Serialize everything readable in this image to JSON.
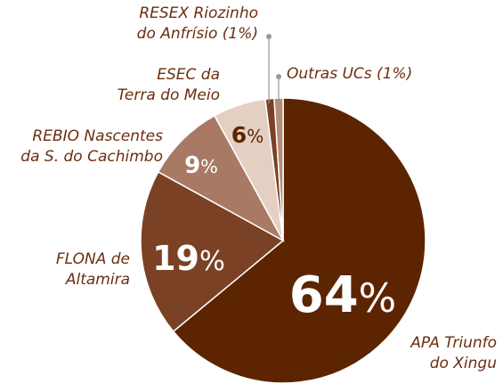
{
  "chart_data": {
    "type": "pie",
    "categories": [
      "APA Triunfo\ndo Xingu",
      "FLONA de\nAltamira",
      "REBIO Nascentes\nda S. do Cachimbo",
      "ESEC da\nTerra do Meio",
      "RESEX Riozinho\ndo Anfrísio (1%)",
      "Outras UCs (1%)"
    ],
    "values": [
      64,
      19,
      9,
      6,
      1,
      1
    ],
    "value_labels": [
      "64%",
      "19%",
      "9%",
      "6%",
      null,
      null
    ],
    "colors": [
      "#5c2400",
      "#7a4125",
      "#a87a65",
      "#e5cfc3",
      "#7a4125",
      "#b58c78"
    ]
  }
}
